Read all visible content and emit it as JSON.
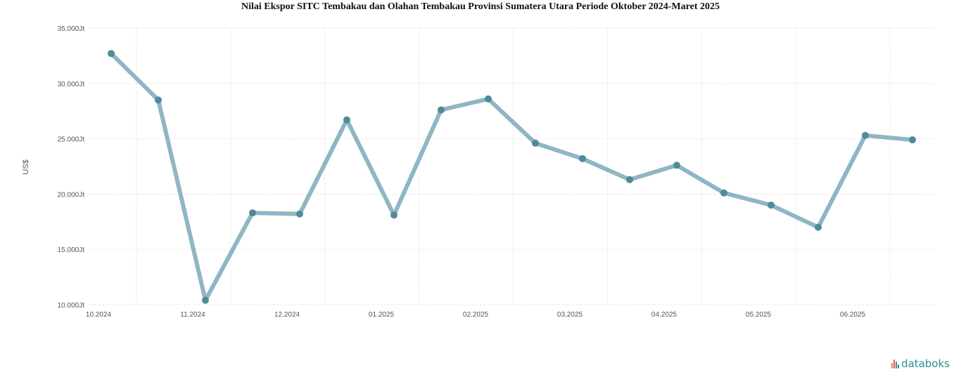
{
  "chart_data": {
    "type": "line",
    "title": "Nilai Ekspor SITC Tembakau dan Olahan Tembakau Provinsi Sumatera Utara Periode Oktober 2024-Maret 2025",
    "xlabel": "",
    "ylabel": "US$",
    "ylim": [
      10000000,
      35000000
    ],
    "yticks": [
      10000000,
      15000000,
      20000000,
      25000000,
      30000000,
      35000000
    ],
    "ytick_labels": [
      "10.000Jt",
      "15.000Jt",
      "20.000Jt",
      "25.000Jt",
      "30.000Jt",
      "35.000Jt"
    ],
    "x_index_ticks": [
      0,
      2,
      4,
      6,
      8,
      10,
      12,
      14,
      16
    ],
    "xtick_labels": [
      "10.2024",
      "11.2024",
      "12.2024",
      "01.2025",
      "02.2025",
      "03.2025",
      "04.2025",
      "05.2025",
      "06.2025"
    ],
    "grid": true,
    "series": [
      {
        "values": [
          32700000,
          28500000,
          10400000,
          18300000,
          18200000,
          26700000,
          18100000,
          27600000,
          28600000,
          24600000,
          23200000,
          21300000,
          22600000,
          20100000,
          19000000,
          17000000,
          25300000,
          24900000
        ],
        "color": "#7aa9b8"
      }
    ]
  },
  "brand": {
    "name": "databoks"
  }
}
